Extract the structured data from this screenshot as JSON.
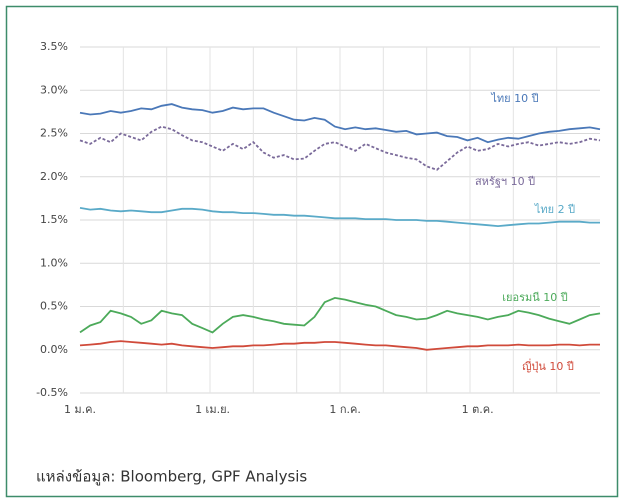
{
  "chart_data": {
    "type": "line",
    "categories": [
      "1 ม.ค.",
      null,
      null,
      null,
      null,
      null,
      null,
      null,
      null,
      null,
      null,
      null,
      null,
      "1 เม.ย.",
      null,
      null,
      null,
      null,
      null,
      null,
      null,
      null,
      null,
      null,
      null,
      null,
      "1 ก.ค.",
      null,
      null,
      null,
      null,
      null,
      null,
      null,
      null,
      null,
      null,
      null,
      null,
      "1 ต.ค.",
      null,
      null,
      null,
      null,
      null,
      null,
      null,
      null,
      null,
      null,
      null,
      null
    ],
    "series": [
      {
        "name": "ไทย 10 ปี",
        "color": "#4a78b8",
        "dashed": false,
        "values": [
          2.74,
          2.72,
          2.73,
          2.76,
          2.74,
          2.76,
          2.79,
          2.78,
          2.82,
          2.84,
          2.8,
          2.78,
          2.77,
          2.74,
          2.76,
          2.8,
          2.78,
          2.79,
          2.79,
          2.74,
          2.7,
          2.66,
          2.65,
          2.68,
          2.66,
          2.58,
          2.55,
          2.57,
          2.55,
          2.56,
          2.54,
          2.52,
          2.53,
          2.49,
          2.5,
          2.51,
          2.47,
          2.46,
          2.42,
          2.45,
          2.4,
          2.43,
          2.45,
          2.44,
          2.47,
          2.5,
          2.52,
          2.53,
          2.55,
          2.56,
          2.57,
          2.55
        ]
      },
      {
        "name": "สหรัฐฯ 10 ปี",
        "color": "#7a6a9a",
        "dashed": true,
        "values": [
          2.42,
          2.38,
          2.45,
          2.4,
          2.5,
          2.46,
          2.42,
          2.52,
          2.58,
          2.55,
          2.48,
          2.42,
          2.4,
          2.35,
          2.3,
          2.38,
          2.32,
          2.4,
          2.28,
          2.22,
          2.25,
          2.2,
          2.21,
          2.3,
          2.38,
          2.4,
          2.35,
          2.3,
          2.38,
          2.33,
          2.28,
          2.25,
          2.22,
          2.2,
          2.12,
          2.08,
          2.18,
          2.28,
          2.35,
          2.3,
          2.32,
          2.38,
          2.35,
          2.38,
          2.4,
          2.36,
          2.38,
          2.4,
          2.38,
          2.4,
          2.44,
          2.42
        ]
      },
      {
        "name": "ไทย 2 ปี",
        "color": "#5aaac8",
        "dashed": false,
        "values": [
          1.64,
          1.62,
          1.63,
          1.61,
          1.6,
          1.61,
          1.6,
          1.59,
          1.59,
          1.61,
          1.63,
          1.63,
          1.62,
          1.6,
          1.59,
          1.59,
          1.58,
          1.58,
          1.57,
          1.56,
          1.56,
          1.55,
          1.55,
          1.54,
          1.53,
          1.52,
          1.52,
          1.52,
          1.51,
          1.51,
          1.51,
          1.5,
          1.5,
          1.5,
          1.49,
          1.49,
          1.48,
          1.47,
          1.46,
          1.45,
          1.44,
          1.43,
          1.44,
          1.45,
          1.46,
          1.46,
          1.47,
          1.48,
          1.48,
          1.48,
          1.47,
          1.47
        ]
      },
      {
        "name": "เยอรมนี 10 ปี",
        "color": "#4caa5a",
        "dashed": false,
        "values": [
          0.2,
          0.28,
          0.32,
          0.45,
          0.42,
          0.38,
          0.3,
          0.34,
          0.45,
          0.42,
          0.4,
          0.3,
          0.25,
          0.2,
          0.3,
          0.38,
          0.4,
          0.38,
          0.35,
          0.33,
          0.3,
          0.29,
          0.28,
          0.38,
          0.55,
          0.6,
          0.58,
          0.55,
          0.52,
          0.5,
          0.45,
          0.4,
          0.38,
          0.35,
          0.36,
          0.4,
          0.45,
          0.42,
          0.4,
          0.38,
          0.35,
          0.38,
          0.4,
          0.45,
          0.43,
          0.4,
          0.36,
          0.33,
          0.3,
          0.35,
          0.4,
          0.42
        ]
      },
      {
        "name": "ญี่ปุ่น 10 ปี",
        "color": "#d04a3a",
        "dashed": false,
        "values": [
          0.05,
          0.06,
          0.07,
          0.09,
          0.1,
          0.09,
          0.08,
          0.07,
          0.06,
          0.07,
          0.05,
          0.04,
          0.03,
          0.02,
          0.03,
          0.04,
          0.04,
          0.05,
          0.05,
          0.06,
          0.07,
          0.07,
          0.08,
          0.08,
          0.09,
          0.09,
          0.08,
          0.07,
          0.06,
          0.05,
          0.05,
          0.04,
          0.03,
          0.02,
          0.0,
          0.01,
          0.02,
          0.03,
          0.04,
          0.04,
          0.05,
          0.05,
          0.05,
          0.06,
          0.05,
          0.05,
          0.05,
          0.06,
          0.06,
          0.05,
          0.06,
          0.06
        ]
      }
    ],
    "ylim": [
      -0.5,
      3.5
    ],
    "yticks": [
      {
        "value": -0.5,
        "label": "-0.5%"
      },
      {
        "value": 0,
        "label": "0.0%"
      },
      {
        "value": 0.5,
        "label": "0.5%"
      },
      {
        "value": 1,
        "label": "1.0%"
      },
      {
        "value": 1.5,
        "label": "1.5%"
      },
      {
        "value": 2,
        "label": "2.0%"
      },
      {
        "value": 2.5,
        "label": "2.5%"
      },
      {
        "value": 3,
        "label": "3.0%"
      },
      {
        "value": 3.5,
        "label": "3.5%"
      }
    ],
    "grid": true,
    "source": "แหล่งข้อมูล: Bloomberg, GPF Analysis"
  }
}
